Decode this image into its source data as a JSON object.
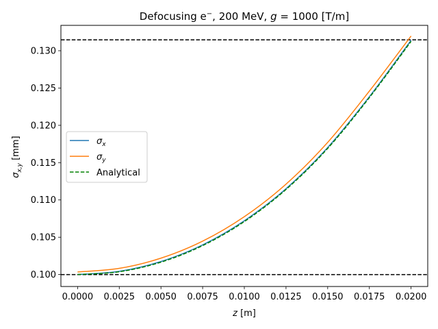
{
  "chart_data": {
    "type": "line",
    "title": "Defocusing e⁻, 200 MeV, g = 1000 [T/m]",
    "title_parts": {
      "pre": "Defocusing e",
      "sup": "−",
      "mid": ", 200 MeV, ",
      "italic": "g",
      "post": " = 1000 [T/m]"
    },
    "xlabel": {
      "italic": "z",
      "rest": " [m]"
    },
    "ylabel": {
      "sym": "σ",
      "sub": "x,y",
      "rest": " [mm]"
    },
    "xlim": [
      -0.001,
      0.021
    ],
    "ylim": [
      0.0984,
      0.1334
    ],
    "xticks": [
      0.0,
      0.0025,
      0.005,
      0.0075,
      0.01,
      0.0125,
      0.015,
      0.0175,
      0.02
    ],
    "xtick_labels": [
      "0.0000",
      "0.0025",
      "0.0050",
      "0.0075",
      "0.0100",
      "0.0125",
      "0.0150",
      "0.0175",
      "0.0200"
    ],
    "yticks": [
      0.1,
      0.105,
      0.11,
      0.115,
      0.12,
      0.125,
      0.13
    ],
    "ytick_labels": [
      "0.100",
      "0.105",
      "0.110",
      "0.115",
      "0.120",
      "0.125",
      "0.130"
    ],
    "grid": false,
    "legend_placement": "center-left",
    "x": [
      0.0,
      0.0025,
      0.005,
      0.0075,
      0.01,
      0.0125,
      0.015,
      0.0175,
      0.02
    ],
    "series": [
      {
        "name": "x",
        "legend_sym": "σ",
        "legend_sub": "x",
        "color": "#1f77b4",
        "style": "solid",
        "values": [
          0.1,
          0.10043,
          0.10175,
          0.10398,
          0.10721,
          0.11151,
          0.11703,
          0.12384,
          0.1314
        ]
      },
      {
        "name": "y",
        "legend_sym": "σ",
        "legend_sub": "y",
        "color": "#ff7f0e",
        "style": "solid",
        "values": [
          0.10035,
          0.10083,
          0.1022,
          0.10448,
          0.10776,
          0.11212,
          0.11772,
          0.12459,
          0.13197
        ]
      },
      {
        "name": "Analytical",
        "legend_sym": "",
        "legend_sub": "",
        "legend_label": "Analytical",
        "color": "#008000",
        "style": "dashed",
        "values": [
          0.1,
          0.10038,
          0.10166,
          0.10388,
          0.1071,
          0.1114,
          0.11691,
          0.12372,
          0.13125
        ]
      }
    ],
    "hlines": [
      {
        "y": 0.1,
        "color": "#000000"
      },
      {
        "y": 0.13146,
        "color": "#000000"
      }
    ]
  }
}
